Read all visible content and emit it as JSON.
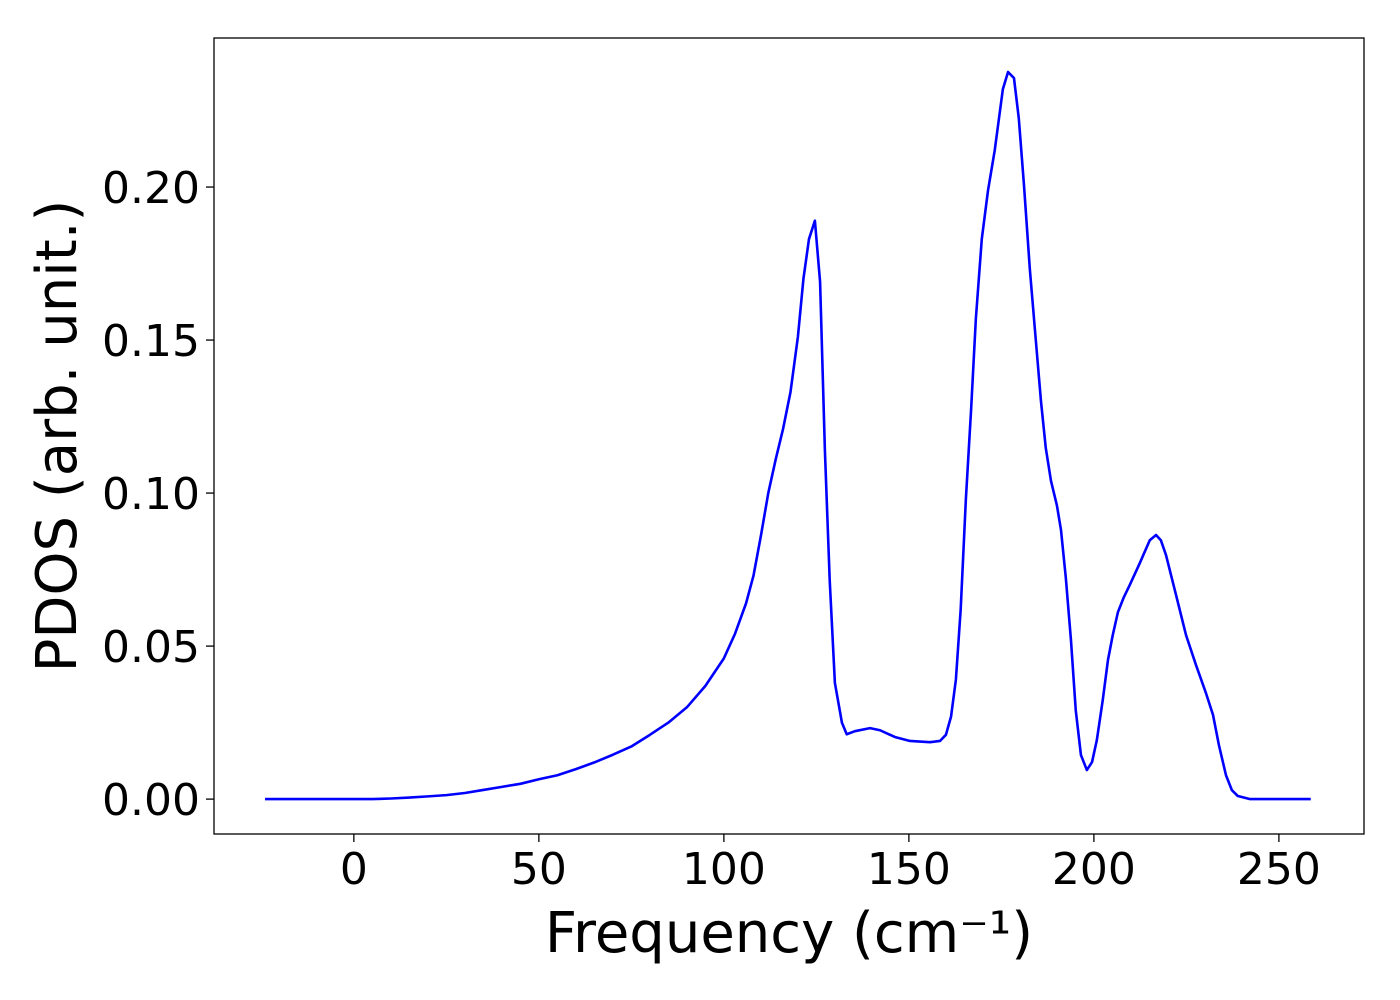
{
  "chart_data": {
    "type": "line",
    "x_label": "Frequency (cm⁻¹)",
    "y_label": "PDOS (arb. unit.)",
    "color": "#0000ff",
    "x": [
      -24,
      -10,
      0,
      5,
      10,
      15,
      20,
      25,
      30,
      35,
      40,
      45,
      50,
      55,
      60,
      65,
      70,
      75,
      80,
      85,
      90,
      95,
      100,
      103,
      106,
      108,
      110,
      112,
      114,
      116,
      118,
      120,
      121.5,
      123,
      124.6,
      126,
      127.3,
      128.6,
      130,
      131.9,
      133.2,
      135.4,
      139.5,
      142.2,
      146.2,
      150.3,
      155.7,
      158.4,
      160,
      161.4,
      162.7,
      164,
      165.4,
      166.8,
      168.1,
      169.7,
      171.4,
      173.2,
      175.4,
      176.8,
      178.4,
      179.7,
      181.1,
      182.7,
      184.3,
      185.7,
      187,
      188.4,
      190,
      191.1,
      192.4,
      193.8,
      195.1,
      196.5,
      198.1,
      199.5,
      200.8,
      202.4,
      203.8,
      205.1,
      206.5,
      208.1,
      209.7,
      212.4,
      215.1,
      216.8,
      218.1,
      219.5,
      222.2,
      224.9,
      227.6,
      230.3,
      232.2,
      233.8,
      235.7,
      237.3,
      238.9,
      242.2,
      250,
      258.6
    ],
    "values": [
      0,
      0,
      0,
      0,
      0.0002,
      0.0005,
      0.0009,
      0.0013,
      0.002,
      0.003,
      0.004,
      0.005,
      0.0065,
      0.0078,
      0.0098,
      0.012,
      0.0145,
      0.0172,
      0.021,
      0.025,
      0.03,
      0.037,
      0.046,
      0.054,
      0.064,
      0.073,
      0.086,
      0.1,
      0.111,
      0.121,
      0.133,
      0.151,
      0.17,
      0.183,
      0.189,
      0.169,
      0.114,
      0.0716,
      0.038,
      0.025,
      0.0212,
      0.0222,
      0.0232,
      0.0225,
      0.0203,
      0.019,
      0.0186,
      0.019,
      0.021,
      0.027,
      0.039,
      0.062,
      0.098,
      0.127,
      0.157,
      0.183,
      0.199,
      0.212,
      0.232,
      0.2376,
      0.2356,
      0.2225,
      0.2007,
      0.173,
      0.15,
      0.13,
      0.1147,
      0.104,
      0.096,
      0.088,
      0.0725,
      0.052,
      0.029,
      0.0144,
      0.0095,
      0.0121,
      0.0193,
      0.0324,
      0.0454,
      0.0536,
      0.0611,
      0.066,
      0.07,
      0.0771,
      0.0846,
      0.0863,
      0.0846,
      0.0797,
      0.0667,
      0.0536,
      0.0438,
      0.0346,
      0.0275,
      0.0176,
      0.0078,
      0.0029,
      0.001,
      0,
      0,
      0
    ],
    "xlim": [
      -37.8,
      273
    ],
    "ylim": [
      -0.0114,
      0.2487
    ],
    "xticks": [
      0,
      50,
      100,
      150,
      200,
      250
    ],
    "yticks": [
      {
        "value": 0,
        "label": "0.00"
      },
      {
        "value": 0.05,
        "label": "0.05"
      },
      {
        "value": 0.1,
        "label": "0.10"
      },
      {
        "value": 0.15,
        "label": "0.15"
      },
      {
        "value": 0.2,
        "label": "0.20"
      }
    ],
    "grid": false
  }
}
